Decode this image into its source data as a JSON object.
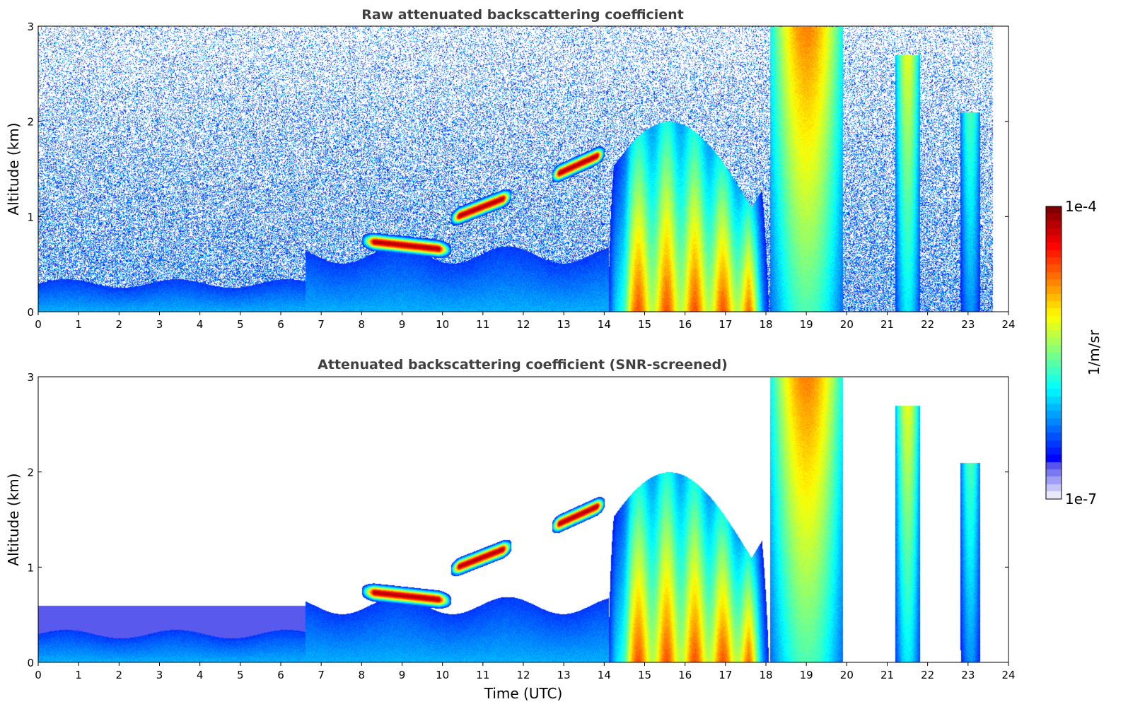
{
  "chart_data": [
    {
      "type": "heatmap",
      "title": "Raw attenuated backscattering coefficient",
      "xlabel": "",
      "ylabel": "Altitude (km)",
      "xlim": [
        0,
        24
      ],
      "ylim": [
        0,
        3
      ],
      "x_ticks": [
        "0",
        "1",
        "2",
        "3",
        "4",
        "5",
        "6",
        "7",
        "8",
        "9",
        "10",
        "11",
        "12",
        "13",
        "14",
        "15",
        "16",
        "17",
        "18",
        "19",
        "20",
        "21",
        "22",
        "23",
        "24"
      ],
      "y_ticks": [
        "0",
        "1",
        "2",
        "3"
      ],
      "data_end_time": 23.6,
      "colormap": "jet",
      "color_scale": "log",
      "color_range": [
        1e-07,
        0.0001
      ],
      "features": [
        {
          "kind": "boundary_layer",
          "t_start": 0,
          "t_end": 6.6,
          "top_km": 0.3,
          "level": 0.3
        },
        {
          "kind": "boundary_layer",
          "t_start": 6.6,
          "t_end": 14.1,
          "top_km": 0.6,
          "level": 0.3
        },
        {
          "kind": "aerosol_layer",
          "t_start": 8.0,
          "t_end": 10.2,
          "alt_km": 0.75,
          "level": 0.95
        },
        {
          "kind": "elevated_layer",
          "t_start": 10.2,
          "t_end": 11.7,
          "alt_km": 1.1,
          "level": 0.95
        },
        {
          "kind": "elevated_layer",
          "t_start": 12.7,
          "t_end": 14.0,
          "alt_km": 1.55,
          "level": 0.95
        },
        {
          "kind": "convective_plume",
          "t_start": 14.1,
          "t_end": 18.1,
          "top_km": 2.0,
          "level": 0.8
        },
        {
          "kind": "cloud_column",
          "t_start": 18.1,
          "t_end": 19.9,
          "top_km": 3.0,
          "level": 0.75
        },
        {
          "kind": "cloud_column",
          "t_start": 21.2,
          "t_end": 21.8,
          "top_km": 2.7,
          "level": 0.6
        },
        {
          "kind": "cloud_column",
          "t_start": 22.8,
          "t_end": 23.3,
          "top_km": 2.1,
          "level": 0.45
        }
      ]
    },
    {
      "type": "heatmap",
      "title": "Attenuated backscattering coefficient (SNR-screened)",
      "xlabel": "Time (UTC)",
      "ylabel": "Altitude (km)",
      "xlim": [
        0,
        24
      ],
      "ylim": [
        0,
        3
      ],
      "x_ticks": [
        "0",
        "1",
        "2",
        "3",
        "4",
        "5",
        "6",
        "7",
        "8",
        "9",
        "10",
        "11",
        "12",
        "13",
        "14",
        "15",
        "16",
        "17",
        "18",
        "19",
        "20",
        "21",
        "22",
        "23",
        "24"
      ],
      "y_ticks": [
        "0",
        "1",
        "2",
        "3"
      ],
      "data_end_time": 23.6,
      "colormap": "jet",
      "color_scale": "log",
      "color_range": [
        1e-07,
        0.0001
      ],
      "screened": true
    }
  ],
  "colorbar": {
    "label": "1/m/sr",
    "max_label": "1e-4",
    "min_label": "1e-7"
  }
}
